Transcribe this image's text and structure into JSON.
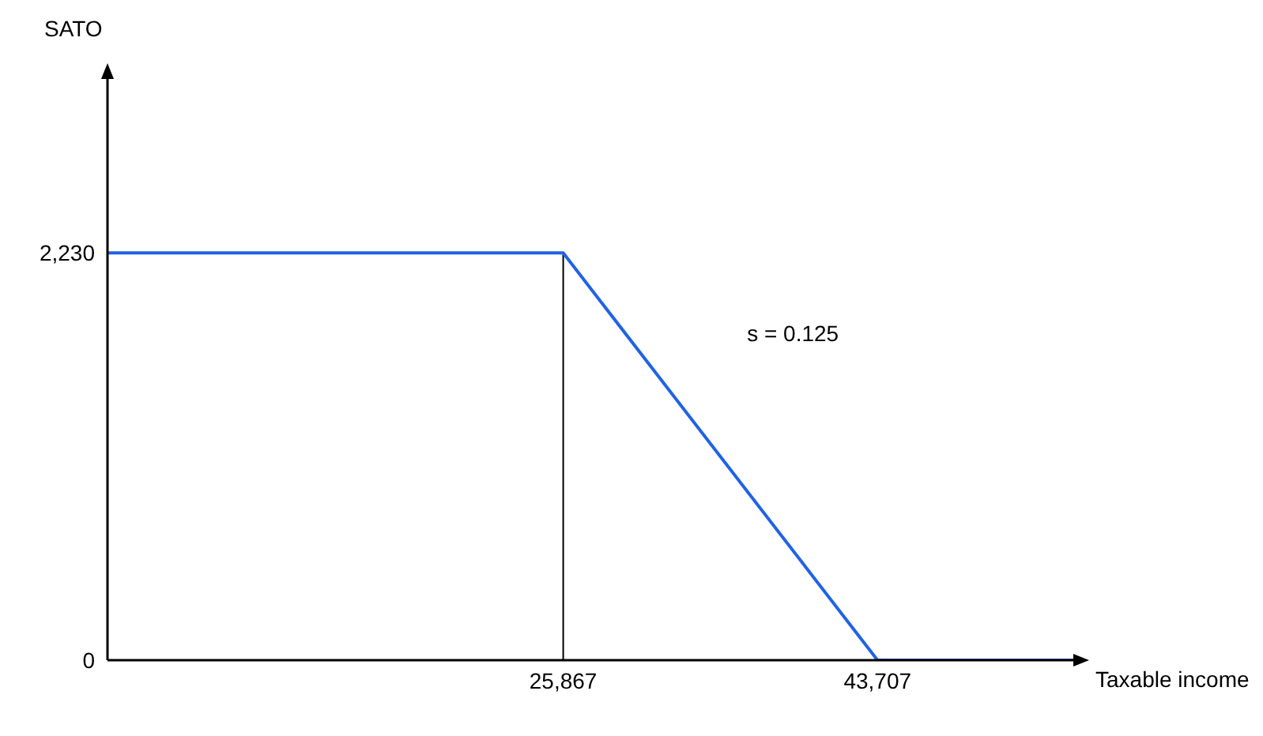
{
  "chart_data": {
    "type": "line",
    "xlabel": "Taxable income",
    "ylabel": "SATO",
    "x": [
      0,
      25867,
      43707,
      55000
    ],
    "series": [
      {
        "color": "#1f63e6",
        "values": [
          2230,
          2230,
          0,
          0
        ]
      }
    ],
    "xlim": [
      0,
      55000
    ],
    "ylim": [
      0,
      3200
    ],
    "xticks": [
      {
        "value": 0,
        "label": null
      },
      {
        "value": 25867,
        "label": "25,867"
      },
      {
        "value": 43707,
        "label": "43,707"
      }
    ],
    "yticks": [
      {
        "value": 0,
        "label": "0"
      },
      {
        "value": 2230,
        "label": "2,230"
      }
    ],
    "ref_lines": [
      {
        "axis": "x",
        "value": 25867,
        "color": "#000000"
      }
    ],
    "annotations": [
      "s = 0.125"
    ]
  }
}
